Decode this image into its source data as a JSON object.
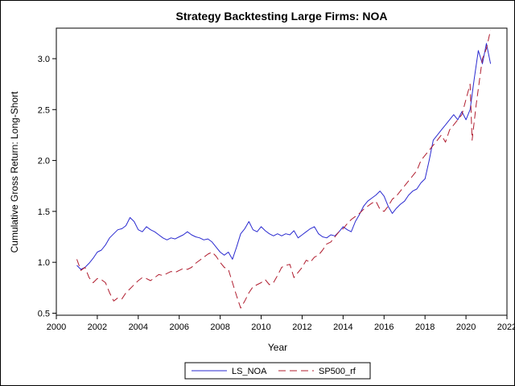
{
  "chart_data": {
    "type": "line",
    "title": "Strategy Backtesting Large Firms: NOA",
    "xlabel": "Year",
    "ylabel": "Cumulative Gross Return: Long-Short",
    "xlim": [
      2000,
      2022
    ],
    "ylim": [
      0.48,
      3.3
    ],
    "x_ticks": [
      2000,
      2002,
      2004,
      2006,
      2008,
      2010,
      2012,
      2014,
      2016,
      2018,
      2020,
      2022
    ],
    "y_ticks": [
      0.5,
      1.0,
      1.5,
      2.0,
      2.5,
      3.0
    ],
    "x_tick_labels": [
      "2000",
      "2002",
      "2004",
      "2006",
      "2008",
      "2010",
      "2012",
      "2014",
      "2016",
      "2018",
      "2020",
      "2022"
    ],
    "y_tick_labels": [
      "0.5",
      "1.0",
      "1.5",
      "2.0",
      "2.5",
      "3.0"
    ],
    "legend_position": "bottom",
    "grid": false,
    "colors": {
      "LS_NOA": "#2a2ad0",
      "SP500_rf": "#b01c2e"
    },
    "series": [
      {
        "name": "LS_NOA",
        "style": "solid",
        "points": [
          [
            2001.0,
            0.97
          ],
          [
            2001.2,
            0.93
          ],
          [
            2001.4,
            0.95
          ],
          [
            2001.6,
            0.99
          ],
          [
            2001.8,
            1.04
          ],
          [
            2002.0,
            1.1
          ],
          [
            2002.2,
            1.12
          ],
          [
            2002.4,
            1.17
          ],
          [
            2002.6,
            1.24
          ],
          [
            2002.8,
            1.28
          ],
          [
            2003.0,
            1.32
          ],
          [
            2003.2,
            1.33
          ],
          [
            2003.4,
            1.36
          ],
          [
            2003.6,
            1.44
          ],
          [
            2003.8,
            1.4
          ],
          [
            2004.0,
            1.32
          ],
          [
            2004.2,
            1.3
          ],
          [
            2004.4,
            1.35
          ],
          [
            2004.6,
            1.32
          ],
          [
            2004.8,
            1.3
          ],
          [
            2005.0,
            1.27
          ],
          [
            2005.2,
            1.24
          ],
          [
            2005.4,
            1.22
          ],
          [
            2005.6,
            1.24
          ],
          [
            2005.8,
            1.23
          ],
          [
            2006.0,
            1.25
          ],
          [
            2006.2,
            1.27
          ],
          [
            2006.4,
            1.3
          ],
          [
            2006.6,
            1.27
          ],
          [
            2006.8,
            1.25
          ],
          [
            2007.0,
            1.24
          ],
          [
            2007.2,
            1.22
          ],
          [
            2007.4,
            1.23
          ],
          [
            2007.6,
            1.2
          ],
          [
            2007.8,
            1.15
          ],
          [
            2008.0,
            1.1
          ],
          [
            2008.2,
            1.07
          ],
          [
            2008.4,
            1.1
          ],
          [
            2008.6,
            1.03
          ],
          [
            2008.8,
            1.15
          ],
          [
            2009.0,
            1.28
          ],
          [
            2009.2,
            1.33
          ],
          [
            2009.4,
            1.4
          ],
          [
            2009.6,
            1.32
          ],
          [
            2009.8,
            1.3
          ],
          [
            2010.0,
            1.35
          ],
          [
            2010.2,
            1.31
          ],
          [
            2010.4,
            1.28
          ],
          [
            2010.6,
            1.26
          ],
          [
            2010.8,
            1.28
          ],
          [
            2011.0,
            1.26
          ],
          [
            2011.2,
            1.28
          ],
          [
            2011.4,
            1.27
          ],
          [
            2011.6,
            1.31
          ],
          [
            2011.8,
            1.24
          ],
          [
            2012.0,
            1.27
          ],
          [
            2012.2,
            1.3
          ],
          [
            2012.4,
            1.33
          ],
          [
            2012.6,
            1.35
          ],
          [
            2012.8,
            1.28
          ],
          [
            2013.0,
            1.25
          ],
          [
            2013.2,
            1.24
          ],
          [
            2013.4,
            1.27
          ],
          [
            2013.6,
            1.26
          ],
          [
            2013.8,
            1.3
          ],
          [
            2014.0,
            1.35
          ],
          [
            2014.2,
            1.32
          ],
          [
            2014.4,
            1.3
          ],
          [
            2014.6,
            1.4
          ],
          [
            2014.8,
            1.47
          ],
          [
            2015.0,
            1.55
          ],
          [
            2015.2,
            1.6
          ],
          [
            2015.4,
            1.63
          ],
          [
            2015.6,
            1.66
          ],
          [
            2015.8,
            1.7
          ],
          [
            2016.0,
            1.65
          ],
          [
            2016.2,
            1.55
          ],
          [
            2016.4,
            1.48
          ],
          [
            2016.6,
            1.53
          ],
          [
            2016.8,
            1.57
          ],
          [
            2017.0,
            1.6
          ],
          [
            2017.2,
            1.66
          ],
          [
            2017.4,
            1.7
          ],
          [
            2017.6,
            1.72
          ],
          [
            2017.8,
            1.78
          ],
          [
            2018.0,
            1.82
          ],
          [
            2018.2,
            2.0
          ],
          [
            2018.4,
            2.2
          ],
          [
            2018.6,
            2.25
          ],
          [
            2018.8,
            2.3
          ],
          [
            2019.0,
            2.35
          ],
          [
            2019.2,
            2.4
          ],
          [
            2019.4,
            2.45
          ],
          [
            2019.6,
            2.4
          ],
          [
            2019.8,
            2.48
          ],
          [
            2020.0,
            2.4
          ],
          [
            2020.2,
            2.5
          ],
          [
            2020.4,
            2.8
          ],
          [
            2020.6,
            3.08
          ],
          [
            2020.8,
            2.95
          ],
          [
            2021.0,
            3.15
          ],
          [
            2021.2,
            2.95
          ]
        ]
      },
      {
        "name": "SP500_rf",
        "style": "dashed",
        "points": [
          [
            2001.0,
            1.03
          ],
          [
            2001.2,
            0.92
          ],
          [
            2001.4,
            0.95
          ],
          [
            2001.6,
            0.85
          ],
          [
            2001.8,
            0.8
          ],
          [
            2002.0,
            0.84
          ],
          [
            2002.2,
            0.83
          ],
          [
            2002.4,
            0.8
          ],
          [
            2002.6,
            0.7
          ],
          [
            2002.8,
            0.62
          ],
          [
            2003.0,
            0.65
          ],
          [
            2003.2,
            0.64
          ],
          [
            2003.4,
            0.7
          ],
          [
            2003.6,
            0.74
          ],
          [
            2003.8,
            0.78
          ],
          [
            2004.0,
            0.82
          ],
          [
            2004.2,
            0.85
          ],
          [
            2004.4,
            0.84
          ],
          [
            2004.6,
            0.82
          ],
          [
            2004.8,
            0.85
          ],
          [
            2005.0,
            0.88
          ],
          [
            2005.2,
            0.87
          ],
          [
            2005.4,
            0.89
          ],
          [
            2005.6,
            0.91
          ],
          [
            2005.8,
            0.9
          ],
          [
            2006.0,
            0.92
          ],
          [
            2006.2,
            0.94
          ],
          [
            2006.4,
            0.93
          ],
          [
            2006.6,
            0.95
          ],
          [
            2006.8,
            0.99
          ],
          [
            2007.0,
            1.02
          ],
          [
            2007.2,
            1.05
          ],
          [
            2007.4,
            1.08
          ],
          [
            2007.6,
            1.1
          ],
          [
            2007.8,
            1.06
          ],
          [
            2008.0,
            1.0
          ],
          [
            2008.2,
            0.95
          ],
          [
            2008.4,
            0.93
          ],
          [
            2008.6,
            0.8
          ],
          [
            2008.8,
            0.67
          ],
          [
            2009.0,
            0.55
          ],
          [
            2009.2,
            0.62
          ],
          [
            2009.4,
            0.7
          ],
          [
            2009.6,
            0.76
          ],
          [
            2009.8,
            0.78
          ],
          [
            2010.0,
            0.8
          ],
          [
            2010.2,
            0.83
          ],
          [
            2010.4,
            0.78
          ],
          [
            2010.6,
            0.8
          ],
          [
            2010.8,
            0.87
          ],
          [
            2011.0,
            0.95
          ],
          [
            2011.2,
            0.97
          ],
          [
            2011.4,
            0.98
          ],
          [
            2011.6,
            0.85
          ],
          [
            2011.8,
            0.9
          ],
          [
            2012.0,
            0.95
          ],
          [
            2012.2,
            1.02
          ],
          [
            2012.4,
            1.0
          ],
          [
            2012.6,
            1.05
          ],
          [
            2012.8,
            1.07
          ],
          [
            2013.0,
            1.12
          ],
          [
            2013.2,
            1.18
          ],
          [
            2013.4,
            1.2
          ],
          [
            2013.6,
            1.25
          ],
          [
            2013.8,
            1.3
          ],
          [
            2014.0,
            1.33
          ],
          [
            2014.2,
            1.38
          ],
          [
            2014.4,
            1.42
          ],
          [
            2014.6,
            1.45
          ],
          [
            2014.8,
            1.48
          ],
          [
            2015.0,
            1.52
          ],
          [
            2015.2,
            1.55
          ],
          [
            2015.4,
            1.58
          ],
          [
            2015.6,
            1.6
          ],
          [
            2015.8,
            1.52
          ],
          [
            2016.0,
            1.5
          ],
          [
            2016.2,
            1.55
          ],
          [
            2016.4,
            1.62
          ],
          [
            2016.6,
            1.65
          ],
          [
            2016.8,
            1.7
          ],
          [
            2017.0,
            1.75
          ],
          [
            2017.2,
            1.8
          ],
          [
            2017.4,
            1.85
          ],
          [
            2017.6,
            1.9
          ],
          [
            2017.8,
            2.0
          ],
          [
            2018.0,
            2.05
          ],
          [
            2018.2,
            2.1
          ],
          [
            2018.4,
            2.15
          ],
          [
            2018.6,
            2.2
          ],
          [
            2018.8,
            2.25
          ],
          [
            2019.0,
            2.18
          ],
          [
            2019.2,
            2.3
          ],
          [
            2019.4,
            2.35
          ],
          [
            2019.6,
            2.4
          ],
          [
            2019.8,
            2.45
          ],
          [
            2020.0,
            2.6
          ],
          [
            2020.2,
            2.75
          ],
          [
            2020.3,
            2.2
          ],
          [
            2020.5,
            2.55
          ],
          [
            2020.7,
            2.85
          ],
          [
            2020.8,
            3.0
          ],
          [
            2021.0,
            3.1
          ],
          [
            2021.2,
            3.28
          ]
        ]
      }
    ]
  }
}
